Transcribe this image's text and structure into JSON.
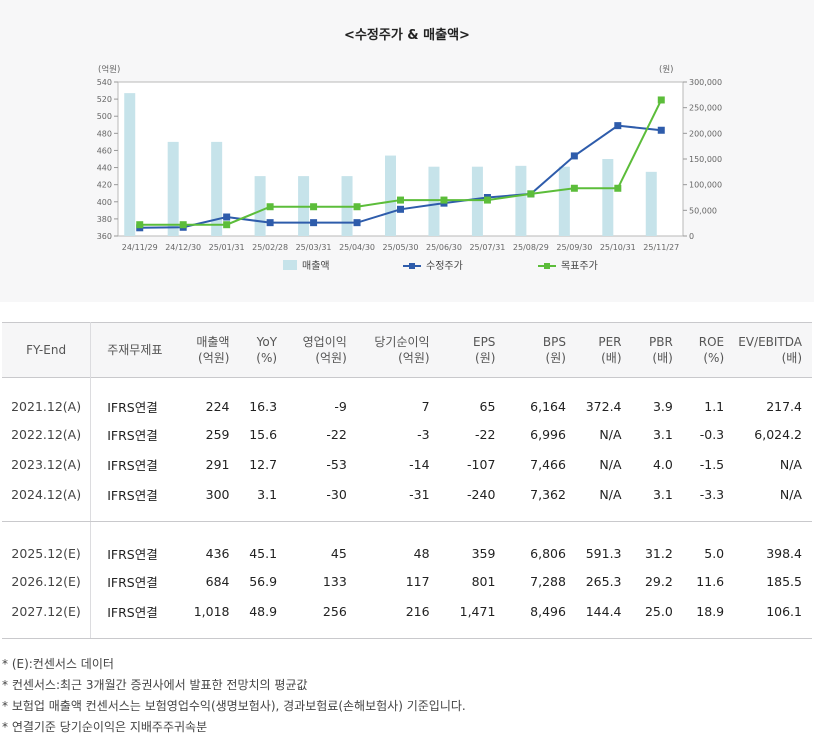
{
  "chart_data": {
    "type": "bar",
    "title": "<수정주가 & 매출액>",
    "left_axis_label": "(억원)",
    "right_axis_label": "(원)",
    "categories": [
      "24/11/29",
      "24/12/30",
      "25/01/31",
      "25/02/28",
      "25/03/31",
      "25/04/30",
      "25/05/30",
      "25/06/30",
      "25/07/31",
      "25/08/29",
      "25/09/30",
      "25/10/31",
      "25/11/27"
    ],
    "left_ylim": [
      360,
      540
    ],
    "left_ticks": [
      "540",
      "520",
      "500",
      "480",
      "460",
      "440",
      "420",
      "400",
      "380",
      "360"
    ],
    "right_ylim": [
      0,
      300000
    ],
    "right_ticks": [
      "300,000",
      "250,000",
      "200,000",
      "150,000",
      "100,000",
      "50,000",
      "0"
    ],
    "series": [
      {
        "name": "매출액",
        "kind": "bar",
        "axis": "left",
        "color": "#c6e3ea",
        "values": [
          527,
          470,
          470,
          430,
          430,
          430,
          454,
          441,
          441,
          442,
          441,
          450,
          435
        ]
      },
      {
        "name": "수정주가",
        "kind": "line",
        "axis": "right",
        "color": "#2e5cab",
        "values": [
          16000,
          17000,
          37000,
          26000,
          26000,
          26000,
          52000,
          64000,
          75000,
          82000,
          156000,
          215000,
          206000
        ]
      },
      {
        "name": "목표주가",
        "kind": "line",
        "axis": "right",
        "color": "#5cbd3a",
        "values": [
          22000,
          22000,
          22000,
          57000,
          57000,
          57000,
          70000,
          70000,
          70000,
          82000,
          93000,
          93000,
          265000
        ]
      }
    ]
  },
  "table": {
    "headers": [
      [
        "FY-End"
      ],
      [
        "주재무제표"
      ],
      [
        "매출액",
        "(억원)"
      ],
      [
        "YoY",
        "(%)"
      ],
      [
        "영업이익",
        "(억원)"
      ],
      [
        "당기순이익",
        "(억원)"
      ],
      [
        "EPS",
        "(원)"
      ],
      [
        "BPS",
        "(원)"
      ],
      [
        "PER",
        "(배)"
      ],
      [
        "PBR",
        "(배)"
      ],
      [
        "ROE",
        "(%)"
      ],
      [
        "EV/EBITDA",
        "(배)"
      ]
    ],
    "rows": [
      [
        "2021.12(A)",
        "IFRS연결",
        "224",
        "16.3",
        "-9",
        "7",
        "65",
        "6,164",
        "372.4",
        "3.9",
        "1.1",
        "217.4"
      ],
      [
        "2022.12(A)",
        "IFRS연결",
        "259",
        "15.6",
        "-22",
        "-3",
        "-22",
        "6,996",
        "N/A",
        "3.1",
        "-0.3",
        "6,024.2"
      ],
      [
        "2023.12(A)",
        "IFRS연결",
        "291",
        "12.7",
        "-53",
        "-14",
        "-107",
        "7,466",
        "N/A",
        "4.0",
        "-1.5",
        "N/A"
      ],
      [
        "2024.12(A)",
        "IFRS연결",
        "300",
        "3.1",
        "-30",
        "-31",
        "-240",
        "7,362",
        "N/A",
        "3.1",
        "-3.3",
        "N/A"
      ],
      [
        "2025.12(E)",
        "IFRS연결",
        "436",
        "45.1",
        "45",
        "48",
        "359",
        "6,806",
        "591.3",
        "31.2",
        "5.0",
        "398.4"
      ],
      [
        "2026.12(E)",
        "IFRS연결",
        "684",
        "56.9",
        "133",
        "117",
        "801",
        "7,288",
        "265.3",
        "29.2",
        "11.6",
        "185.5"
      ],
      [
        "2027.12(E)",
        "IFRS연결",
        "1,018",
        "48.9",
        "256",
        "216",
        "1,471",
        "8,496",
        "144.4",
        "25.0",
        "18.9",
        "106.1"
      ]
    ]
  },
  "notes": [
    "* (E):컨센서스 데이터",
    "* 컨센서스:최근 3개월간 증권사에서 발표한 전망치의 평균값",
    "* 보험업 매출액 컨센서스는 보험영업수익(생명보험사), 경과보험료(손해보험사) 기준입니다.",
    "* 연결기준 당기순이익은 지배주주귀속분"
  ]
}
